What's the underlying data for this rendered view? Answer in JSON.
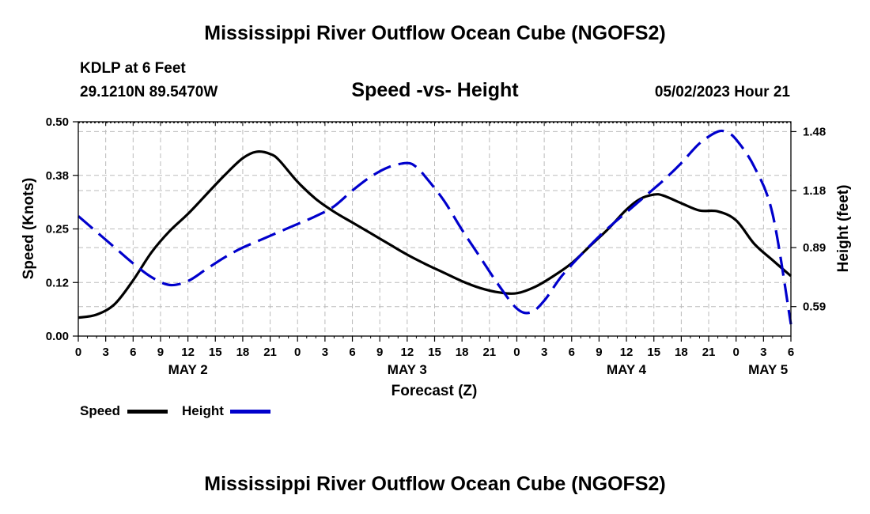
{
  "header": {
    "title": "Mississippi River Outflow Ocean Cube (NGOFS2)",
    "station": "KDLP at 6 Feet",
    "coords": "29.1210N  89.5470W",
    "chart_subtitle": "Speed -vs- Height",
    "datetime": "05/02/2023 Hour 21"
  },
  "footer": {
    "title": "Mississippi River Outflow Ocean Cube (NGOFS2)"
  },
  "legend": {
    "speed_label": "Speed",
    "height_label": "Height"
  },
  "colors": {
    "speed": "#000000",
    "height": "#0000cc",
    "grid": "#bbbbbb"
  },
  "chart_data": {
    "type": "line",
    "xlabel": "Forecast (Z)",
    "ylabel_left": "Speed (Knots)",
    "ylabel_right": "Height (feet)",
    "x_unit": "forecast hours from 00Z May 2",
    "xlim": [
      0,
      78
    ],
    "ylim_left": [
      0,
      0.5
    ],
    "ylim_right": [
      0.44,
      1.53
    ],
    "x_ticks": [
      0,
      3,
      6,
      9,
      12,
      15,
      18,
      21,
      24,
      27,
      30,
      33,
      36,
      39,
      42,
      45,
      48,
      51,
      54,
      57,
      60,
      63,
      66,
      69,
      72,
      75,
      78
    ],
    "x_tick_labels": [
      "0",
      "3",
      "6",
      "9",
      "12",
      "15",
      "18",
      "21",
      "0",
      "3",
      "6",
      "9",
      "12",
      "15",
      "18",
      "21",
      "0",
      "3",
      "6",
      "9",
      "12",
      "15",
      "18",
      "21",
      "0",
      "3",
      "6"
    ],
    "day_labels": [
      {
        "x": 12,
        "label": "MAY 2"
      },
      {
        "x": 36,
        "label": "MAY 3"
      },
      {
        "x": 60,
        "label": "MAY 4"
      },
      {
        "x": 75.5,
        "label": "MAY 5"
      }
    ],
    "left_ticks": [
      0.0,
      0.125,
      0.25,
      0.375,
      0.5
    ],
    "left_tick_labels": [
      "0.00",
      "0.12",
      "0.25",
      "0.38",
      "0.50"
    ],
    "right_ticks": [
      0.59,
      0.89,
      1.18,
      1.48
    ],
    "right_tick_labels": [
      "0.59",
      "0.89",
      "1.18",
      "1.48"
    ],
    "series": [
      {
        "name": "Speed",
        "axis": "left",
        "style": "solid",
        "x": [
          0,
          2,
          4,
          6,
          8,
          10,
          12,
          14,
          16,
          18,
          19.5,
          21,
          22,
          24,
          26,
          28,
          30,
          32,
          34,
          36,
          38,
          40,
          42,
          44,
          46,
          48,
          50,
          52,
          54,
          56,
          58,
          60,
          61.5,
          63,
          64,
          66,
          68,
          70,
          72,
          74,
          76,
          78
        ],
        "y": [
          0.043,
          0.05,
          0.075,
          0.13,
          0.195,
          0.245,
          0.285,
          0.33,
          0.375,
          0.415,
          0.43,
          0.425,
          0.41,
          0.36,
          0.32,
          0.29,
          0.265,
          0.24,
          0.215,
          0.19,
          0.168,
          0.148,
          0.128,
          0.112,
          0.102,
          0.1,
          0.115,
          0.14,
          0.17,
          0.21,
          0.25,
          0.295,
          0.32,
          0.33,
          0.328,
          0.31,
          0.293,
          0.291,
          0.27,
          0.215,
          0.177,
          0.14
        ]
      },
      {
        "name": "Height",
        "axis": "right",
        "style": "dashed",
        "x": [
          0,
          2,
          4,
          6,
          8,
          10,
          12,
          14,
          16,
          18,
          20,
          22,
          24,
          26,
          28,
          30,
          32,
          34,
          36,
          37,
          38,
          40,
          42,
          44,
          46,
          48,
          49.5,
          51,
          53,
          56,
          58,
          60,
          62,
          64,
          66,
          68,
          70,
          71,
          72,
          74,
          76,
          78
        ],
        "y": [
          1.05,
          0.97,
          0.89,
          0.81,
          0.74,
          0.7,
          0.72,
          0.78,
          0.84,
          0.89,
          0.93,
          0.97,
          1.01,
          1.05,
          1.1,
          1.18,
          1.25,
          1.3,
          1.32,
          1.3,
          1.25,
          1.13,
          0.98,
          0.84,
          0.7,
          0.58,
          0.56,
          0.62,
          0.75,
          0.9,
          0.99,
          1.07,
          1.15,
          1.23,
          1.32,
          1.42,
          1.48,
          1.475,
          1.44,
          1.3,
          1.06,
          0.5
        ]
      }
    ]
  }
}
